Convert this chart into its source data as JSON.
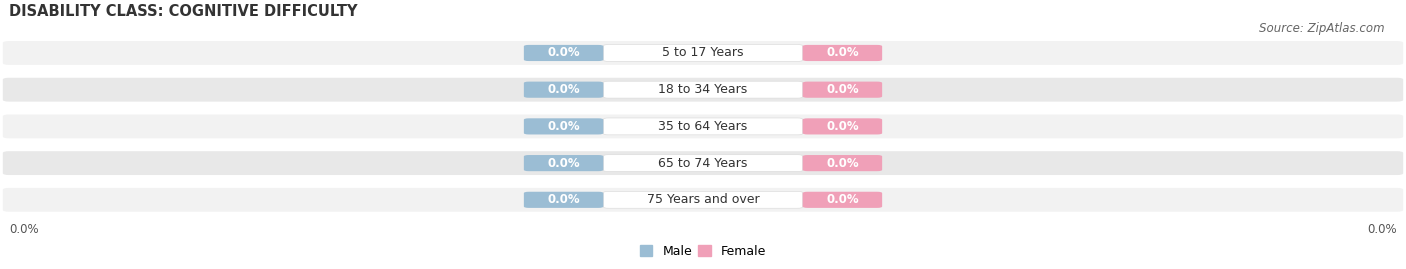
{
  "title": "DISABILITY CLASS: COGNITIVE DIFFICULTY",
  "source": "Source: ZipAtlas.com",
  "categories": [
    "5 to 17 Years",
    "18 to 34 Years",
    "35 to 64 Years",
    "65 to 74 Years",
    "75 Years and over"
  ],
  "male_values": [
    0.0,
    0.0,
    0.0,
    0.0,
    0.0
  ],
  "female_values": [
    0.0,
    0.0,
    0.0,
    0.0,
    0.0
  ],
  "male_color": "#9bbdd4",
  "female_color": "#f0a0b8",
  "row_bg_even": "#f2f2f2",
  "row_bg_odd": "#e8e8e8",
  "left_label": "0.0%",
  "right_label": "0.0%",
  "title_fontsize": 10.5,
  "cat_fontsize": 9,
  "value_fontsize": 8.5,
  "tick_fontsize": 8.5,
  "legend_fontsize": 9,
  "source_fontsize": 8.5,
  "male_label_color": "#7a9fc0",
  "female_label_color": "#e8789a"
}
